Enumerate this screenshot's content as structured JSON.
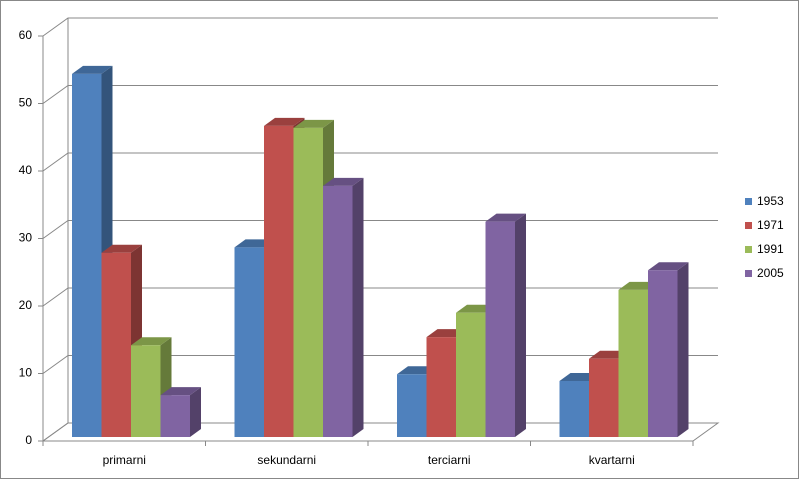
{
  "chart_data": {
    "type": "bar3d",
    "categories": [
      "primarni",
      "sekundarni",
      "terciarni",
      "kvartarni"
    ],
    "series": [
      {
        "name": "1953",
        "color": "#4f81bd",
        "values": [
          53.8,
          28.1,
          9.3,
          8.3
        ]
      },
      {
        "name": "1971",
        "color": "#c0504d",
        "values": [
          27.3,
          46.1,
          14.8,
          11.6
        ]
      },
      {
        "name": "1991",
        "color": "#9bbb59",
        "values": [
          13.6,
          45.8,
          18.4,
          21.8
        ]
      },
      {
        "name": "2005",
        "color": "#8064a2",
        "values": [
          6.2,
          37.2,
          31.9,
          24.7
        ]
      }
    ],
    "ylim": [
      0,
      60
    ],
    "yticks": [
      0,
      10,
      20,
      30,
      40,
      50,
      60
    ],
    "grid": true,
    "legend": "right"
  }
}
